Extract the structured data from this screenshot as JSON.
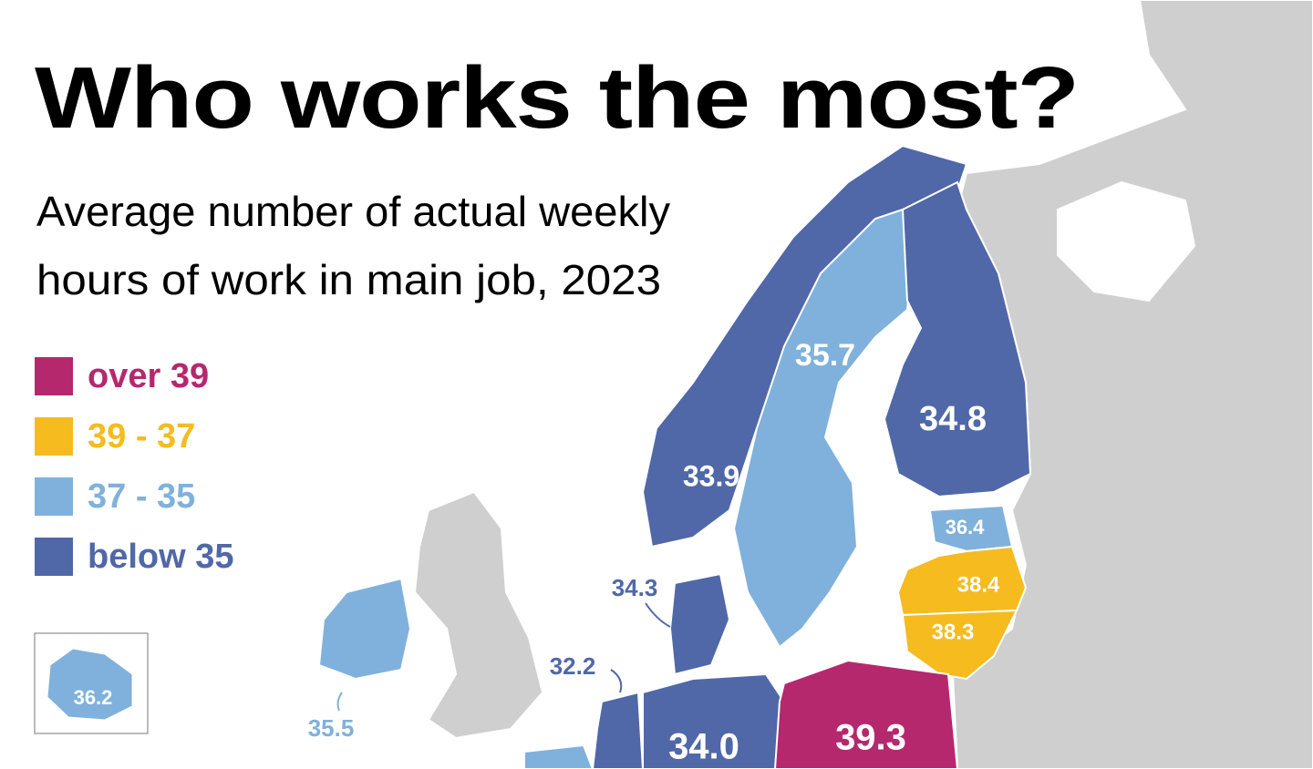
{
  "title": "Who works the most?",
  "subtitle": [
    "Average number of actual weekly",
    "hours of work in main job, 2023"
  ],
  "legend": [
    {
      "label": "over 39",
      "color": "#b5286e"
    },
    {
      "label": "39 - 37",
      "color": "#f5bb1f"
    },
    {
      "label": "37 - 35",
      "color": "#7fb1dc"
    },
    {
      "label": "below 35",
      "color": "#5068a8"
    }
  ],
  "regions": [
    {
      "label": "33.9",
      "color": "#5068a8"
    },
    {
      "label": "35.7",
      "color": "#7fb1dc"
    },
    {
      "label": "34.8",
      "color": "#5068a8"
    },
    {
      "label": "36.4",
      "color": "#7fb1dc"
    },
    {
      "label": "38.4",
      "color": "#f5bb1f"
    },
    {
      "label": "38.3",
      "color": "#f5bb1f"
    },
    {
      "label": "34.3",
      "color": "#5068a8"
    },
    {
      "label": "32.2",
      "color": "#5068a8"
    },
    {
      "label": "35.5",
      "color": "#7fb1dc"
    },
    {
      "label": "34.0",
      "color": "#5068a8"
    },
    {
      "label": "39.3",
      "color": "#b5286e"
    },
    {
      "label": "36.2",
      "color": "#7fb1dc"
    }
  ]
}
